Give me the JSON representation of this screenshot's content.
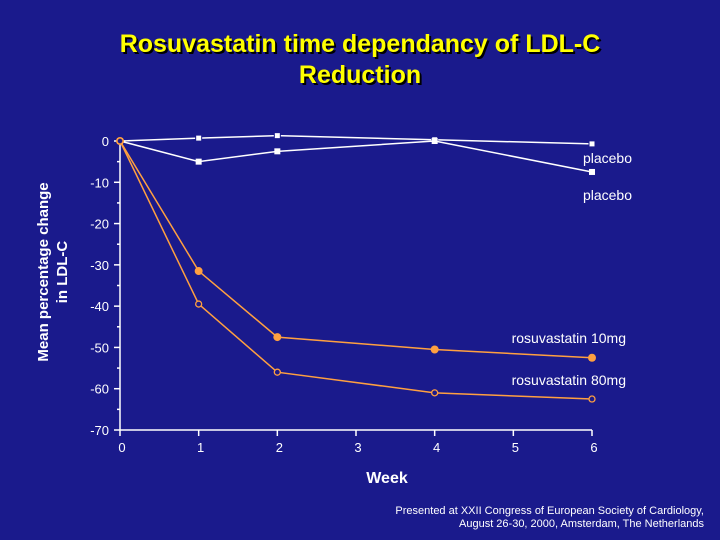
{
  "slide": {
    "title_line1": "Rosuvastatin time dependancy of LDL-C",
    "title_line2": "Reduction",
    "footnote_line1": "Presented at XXII Congress of European Society of Cardiology,",
    "footnote_line2": "August 26-30, 2000, Amsterdam, The Netherlands"
  },
  "colors": {
    "background": "#1a1a8c",
    "title": "#ffff00",
    "axis": "#ffffff",
    "placebo": "#ffffff",
    "rosuvastatin": "#ffa040"
  },
  "chart_data": {
    "type": "line",
    "title": "Rosuvastatin time dependancy of LDL-C Reduction",
    "xlabel": "Week",
    "ylabel": "Mean percentage change in LDL-C",
    "ylabel_lines": [
      "Mean percentage change",
      "in LDL-C"
    ],
    "xlim": [
      0,
      6
    ],
    "ylim": [
      -70,
      0
    ],
    "x_ticks": [
      0,
      1,
      2,
      3,
      4,
      5,
      6
    ],
    "y_ticks": [
      0,
      -10,
      -20,
      -30,
      -40,
      -50,
      -60,
      -70
    ],
    "grid": false,
    "legend": "direct labels at line ends (right)",
    "series": [
      {
        "name": "placebo",
        "marker": "open-square",
        "color": "#ffffff",
        "x": [
          0,
          1,
          2,
          4,
          6
        ],
        "y": [
          0,
          0.7,
          1.3,
          0.3,
          -0.7
        ]
      },
      {
        "name": "placebo",
        "marker": "filled-square",
        "color": "#ffffff",
        "x": [
          0,
          1,
          2,
          4,
          6
        ],
        "y": [
          0,
          -5,
          -2.5,
          0,
          -7.5
        ]
      },
      {
        "name": "rosuvastatin 10mg",
        "marker": "filled-circle",
        "color": "#ffa040",
        "x": [
          0,
          1,
          2,
          4,
          6
        ],
        "y": [
          0,
          -31.5,
          -47.5,
          -50.5,
          -52.5
        ]
      },
      {
        "name": "rosuvastatin 80mg",
        "marker": "open-circle",
        "color": "#ffa040",
        "x": [
          0,
          1,
          2,
          4,
          6
        ],
        "y": [
          0,
          -39.5,
          -56,
          -61,
          -62.5
        ]
      }
    ]
  }
}
